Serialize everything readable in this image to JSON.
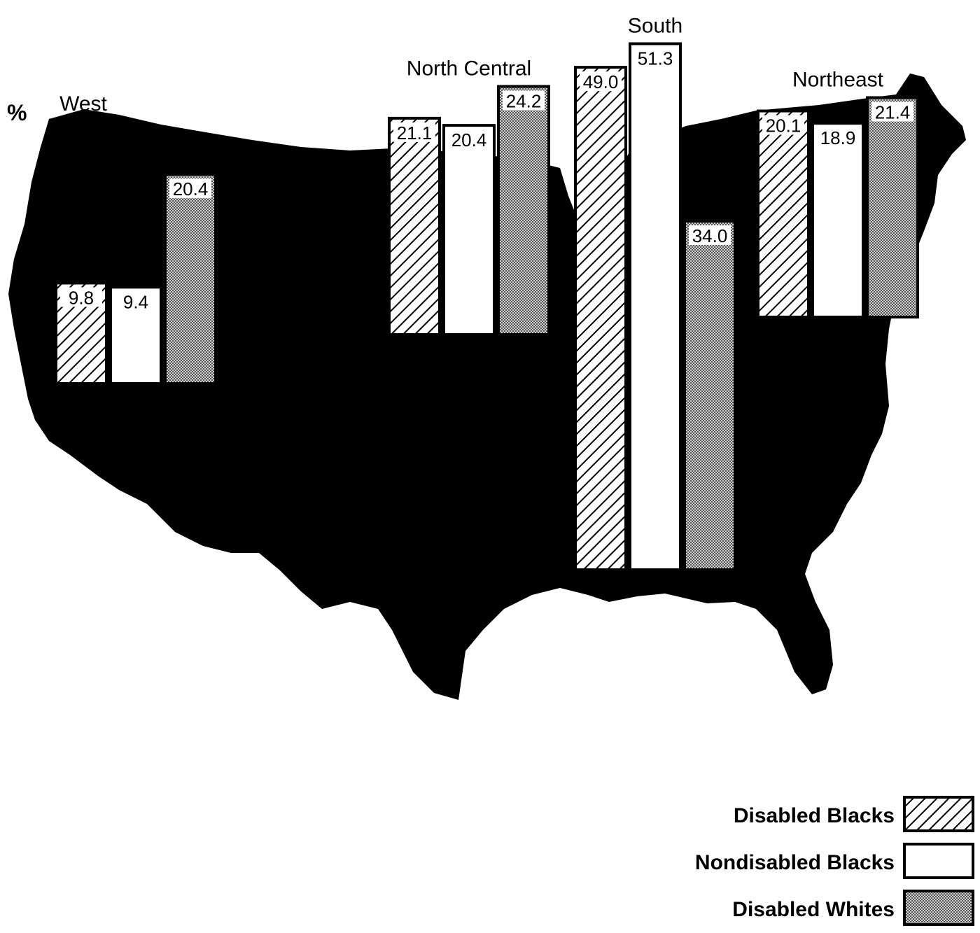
{
  "chart_data": {
    "type": "bar",
    "ylabel": "%",
    "categories": [
      "West",
      "North Central",
      "South",
      "Northeast"
    ],
    "series": [
      {
        "name": "Disabled Blacks",
        "values": [
          9.8,
          21.1,
          49.0,
          20.1
        ],
        "labels": [
          "9.8",
          "21.1",
          "49.0",
          "20.1"
        ],
        "pattern": "hatch"
      },
      {
        "name": "Nondisabled Blacks",
        "values": [
          9.4,
          20.4,
          51.3,
          18.9
        ],
        "labels": [
          "9.4",
          "20.4",
          "51.3",
          "18.9"
        ],
        "pattern": "white"
      },
      {
        "name": "Disabled Whites",
        "values": [
          20.4,
          24.2,
          34.0,
          21.4
        ],
        "labels": [
          "20.4",
          "24.2",
          "34.0",
          "21.4"
        ],
        "pattern": "dots"
      }
    ],
    "background": "map of the contiguous United States (black silhouette)",
    "legend_position": "bottom-right",
    "colors": {
      "map": "#000000",
      "hatch": "#000000",
      "white": "#ffffff",
      "dots": "#7a7a7a"
    }
  }
}
